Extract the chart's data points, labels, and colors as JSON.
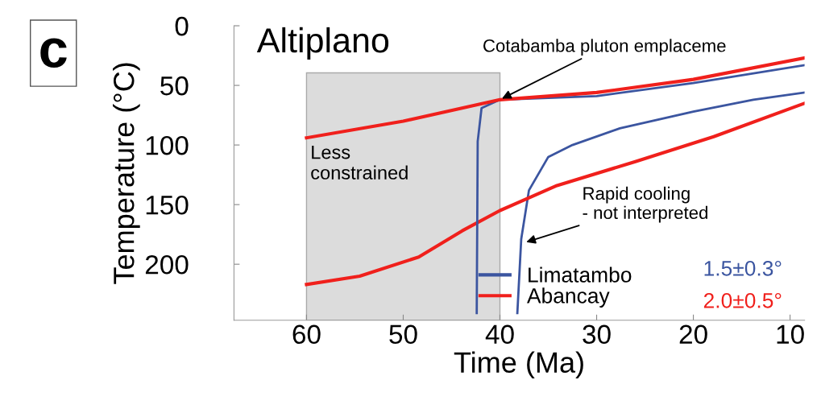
{
  "chart_data": {
    "type": "line",
    "title": "Altiplano",
    "xlabel": "Time (Ma)",
    "ylabel": "Temperature (°C)",
    "xlim": [
      67.5,
      8.5
    ],
    "xticks": [
      60,
      50,
      40,
      30,
      20,
      10
    ],
    "ylim": [
      247,
      0
    ],
    "yticks": [
      0,
      50,
      100,
      150,
      200
    ],
    "grid": false,
    "legend": "bottom right",
    "marker": "none",
    "line_style": "solid",
    "series": [
      {
        "name": "Limatambo",
        "color": "#3b55a0",
        "x": [
          38.2,
          37.8,
          37,
          35,
          32.5,
          27.6,
          20,
          13.8,
          8.5
        ],
        "values": [
          241,
          179,
          138,
          110,
          100,
          86,
          72,
          62,
          56
        ]
      },
      {
        "name": "Abancay",
        "color": "#f0201c",
        "x": [
          60,
          54.5,
          48.4,
          43.9,
          40,
          34.1,
          26,
          17.9,
          8.5
        ],
        "values": [
          217,
          210,
          194,
          172,
          155,
          134,
          114,
          93,
          65
        ]
      },
      {
        "color": "#3b55a0",
        "x": [
          42.4,
          42.3,
          41.9,
          40,
          30,
          20,
          8.5
        ],
        "values": [
          241,
          97,
          69,
          62,
          59,
          48,
          33
        ]
      },
      {
        "color": "#f0201c",
        "x": [
          60,
          50,
          40,
          30,
          20,
          8.5
        ],
        "values": [
          94,
          80,
          62,
          56,
          45,
          27
        ]
      }
    ],
    "bands": [
      {
        "axis": "x",
        "from": 60,
        "to": 40,
        "label": "Less\nconstrained",
        "color": "#dcdcdc"
      }
    ],
    "annotations": [
      "c",
      {
        "text": "Cotabamba pluton emplaceme",
        "x": 40,
        "y": 62
      },
      {
        "text": "Rapid cooling\n- not interpreted",
        "x": 37.5,
        "y": 182
      },
      "1.5±0.3°",
      "2.0±0.5°"
    ]
  }
}
